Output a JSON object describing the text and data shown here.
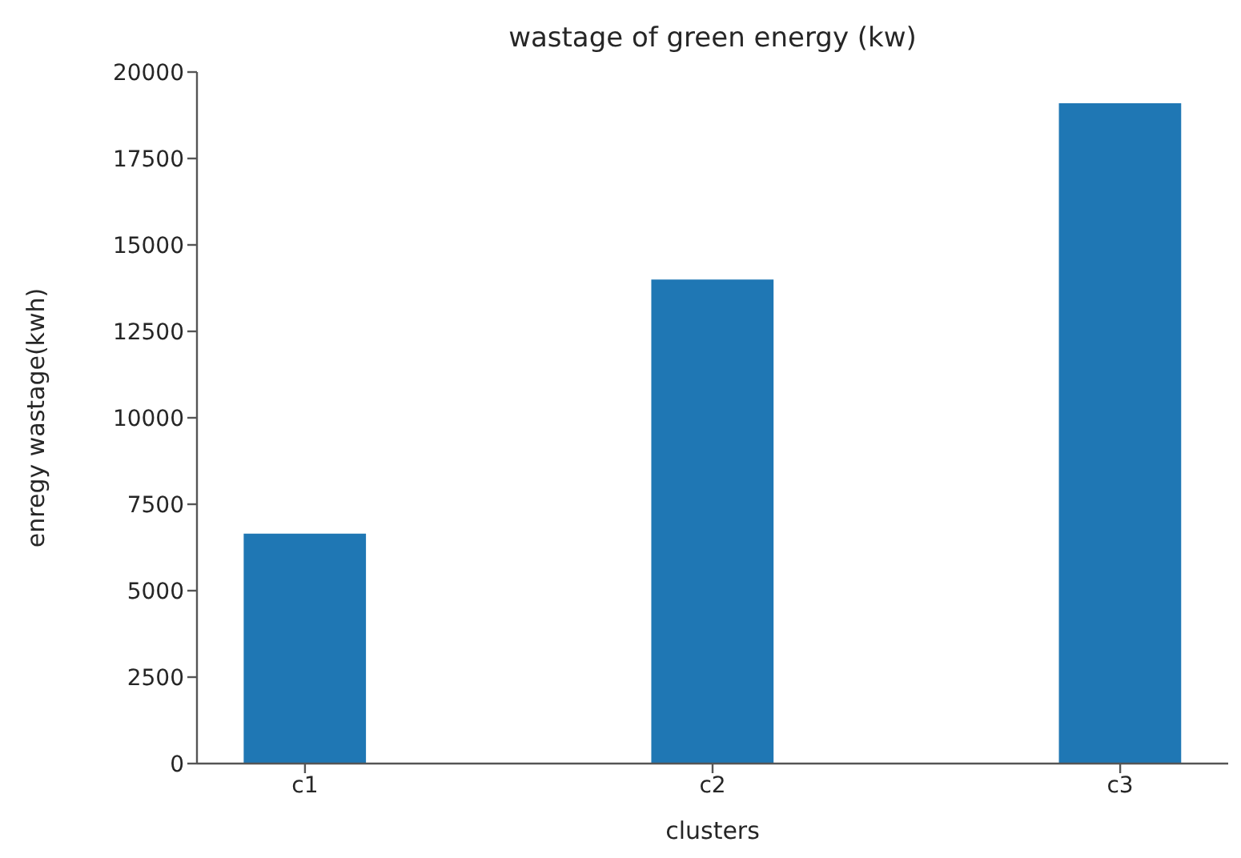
{
  "chart_data": {
    "type": "bar",
    "title": "wastage of green energy (kw)",
    "xlabel": "clusters",
    "ylabel": "enregy wastage(kwh)",
    "categories": [
      "c1",
      "c2",
      "c3"
    ],
    "values": [
      6650,
      14000,
      19100
    ],
    "color": "#1f77b4",
    "ylim": [
      0,
      20000
    ],
    "yticks": [
      0,
      2500,
      5000,
      7500,
      10000,
      12500,
      15000,
      17500,
      20000
    ],
    "grid": false
  }
}
